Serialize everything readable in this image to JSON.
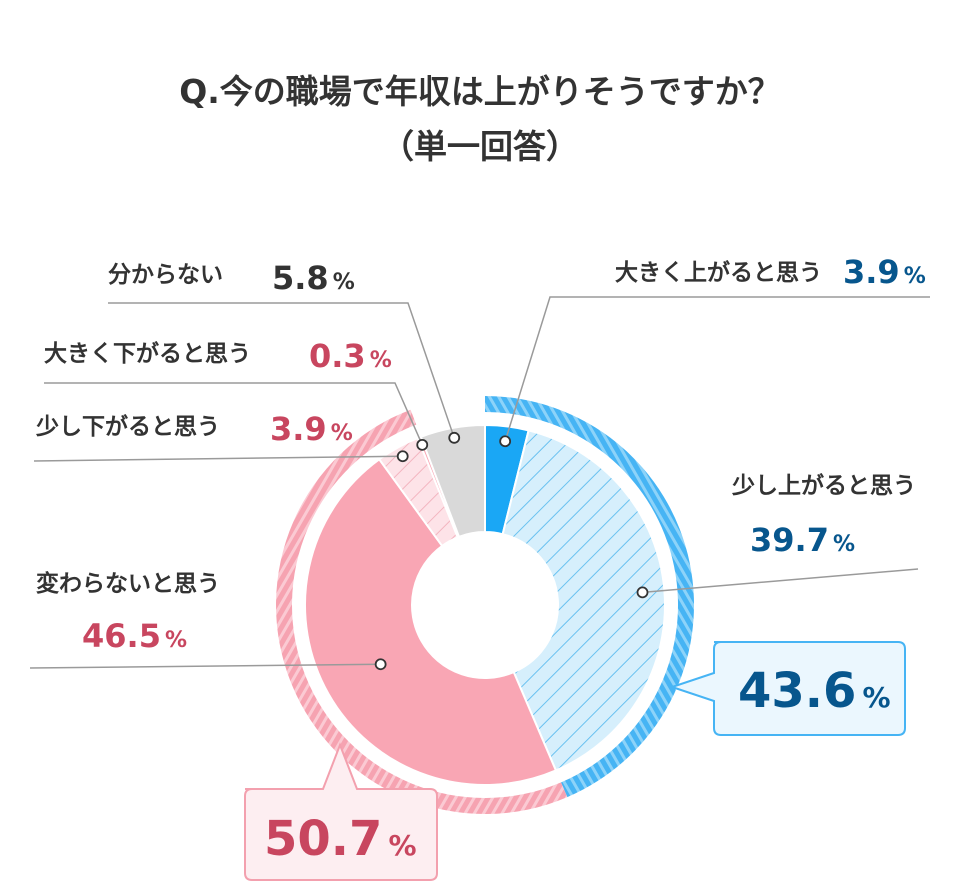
{
  "title": {
    "line1": "Q.今の職場で年収は上がりそうですか？",
    "line2": "（単一回答）"
  },
  "colors": {
    "blue_dark": "#07568d",
    "blue_solid": "#1aa7f5",
    "blue_light": "#d6effc",
    "blue_stroke": "#69c1f0",
    "blue_outer": "#46b4f4",
    "pink_dark": "#c8465f",
    "pink_solid": "#f9a6b4",
    "pink_light": "#fde3e8",
    "pink_stroke": "#f3b5c0",
    "pink_outer": "#f6a3b1",
    "gray": "#d9d9d9",
    "leader": "#9a9a9a",
    "blue_box_bg": "#ebf7fe",
    "pink_box_bg": "#fdeef1"
  },
  "chart_data": {
    "type": "pie",
    "style": "donut",
    "slices": [
      {
        "label": "大きく上がると思う",
        "value": 3.9,
        "value_text": "3.9",
        "unit": "%"
      },
      {
        "label": "少し上がると思う",
        "value": 39.7,
        "value_text": "39.7",
        "unit": "%"
      },
      {
        "label": "変わらないと思う",
        "value": 46.5,
        "value_text": "46.5",
        "unit": "%"
      },
      {
        "label": "少し下がると思う",
        "value": 3.9,
        "value_text": "3.9",
        "unit": "%"
      },
      {
        "label": "大きく下がると思う",
        "value": 0.3,
        "value_text": "0.3",
        "unit": "%"
      },
      {
        "label": "分からない",
        "value": 5.8,
        "value_text": "5.8",
        "unit": "%"
      }
    ],
    "groups": [
      {
        "members": [
          "大きく上がると思う",
          "少し上がると思う"
        ],
        "value": 43.6,
        "value_text": "43.6",
        "unit": "%"
      },
      {
        "members": [
          "変わらないと思う",
          "少し下がると思う",
          "大きく下がると思う"
        ],
        "value": 50.7,
        "value_text": "50.7",
        "unit": "%"
      }
    ]
  }
}
